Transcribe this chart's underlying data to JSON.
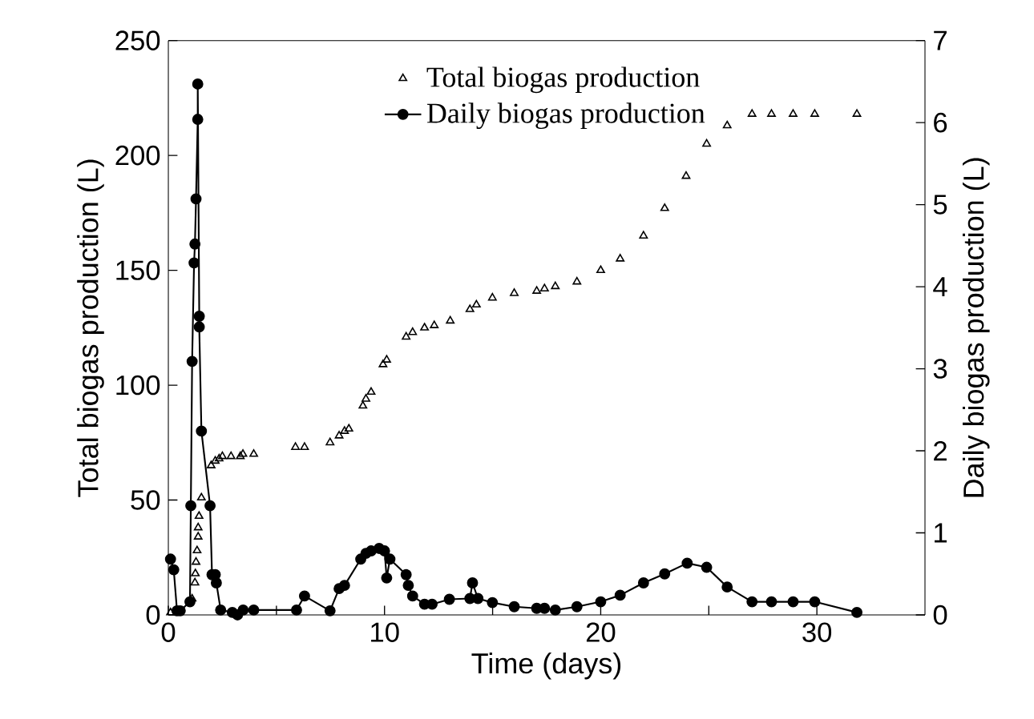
{
  "chart_data": {
    "type": "scatter",
    "xlabel": "Time (days)",
    "ylabel": "Total biogas production (L)",
    "y2label": "Daily biogas production (L)",
    "xlim": [
      0,
      35
    ],
    "xticks": [
      0,
      {
        "value": 5,
        "label": null
      },
      10,
      {
        "value": 15,
        "label": null
      },
      20,
      {
        "value": 25,
        "label": null
      },
      30
    ],
    "ylim": [
      0,
      250
    ],
    "yticks": [
      0,
      50,
      100,
      150,
      200,
      250
    ],
    "y2lim": [
      0,
      7
    ],
    "y2ticks": [
      0,
      1,
      2,
      3,
      4,
      5,
      6,
      7
    ],
    "legend": "top",
    "grid": false,
    "series": [
      {
        "name": "Total biogas production",
        "marker": "triangle",
        "color": "#000000",
        "x": [
          0.1,
          1.1,
          1.23,
          1.25,
          1.28,
          1.33,
          1.38,
          1.38,
          1.42,
          1.53,
          1.98,
          2.17,
          2.35,
          2.5,
          2.9,
          3.33,
          3.45,
          3.95,
          5.88,
          6.3,
          7.48,
          7.9,
          8.15,
          8.35,
          9.0,
          9.14,
          9.38,
          9.93,
          10.1,
          11.0,
          11.3,
          11.85,
          12.3,
          13.04,
          13.95,
          14.25,
          14.99,
          16.0,
          17.04,
          17.4,
          17.9,
          18.9,
          20.0,
          20.9,
          21.98,
          22.96,
          23.95,
          24.9,
          25.85,
          27.0,
          27.9,
          28.9,
          29.9,
          31.85
        ],
        "values": [
          1,
          7,
          14,
          18,
          23,
          28,
          34,
          38,
          43,
          51,
          65,
          67,
          68,
          69,
          69,
          69,
          70,
          70,
          73,
          73,
          75,
          78,
          80,
          81,
          91,
          94,
          97,
          109,
          111,
          121,
          123,
          125,
          126,
          128,
          133,
          135,
          138,
          140,
          141,
          142,
          143,
          145,
          150,
          155,
          165,
          177,
          191,
          205,
          213,
          218,
          218,
          218,
          218,
          218
        ]
      },
      {
        "name": "Daily biogas production",
        "type": "line",
        "axis": "y2",
        "marker": "circle",
        "line_style": "solid",
        "color": "#000000",
        "x": [
          0.1,
          0.25,
          0.4,
          0.55,
          1.0,
          1.04,
          1.1,
          1.19,
          1.23,
          1.28,
          1.36,
          1.36,
          1.43,
          1.43,
          1.53,
          1.93,
          2.02,
          2.17,
          2.22,
          2.42,
          2.96,
          3.2,
          3.46,
          3.95,
          5.93,
          6.3,
          7.48,
          7.9,
          8.15,
          8.9,
          9.14,
          9.38,
          9.75,
          10.0,
          10.1,
          10.25,
          11.0,
          11.1,
          11.3,
          11.85,
          12.2,
          13.0,
          13.95,
          14.07,
          14.32,
          14.99,
          16.0,
          17.04,
          17.4,
          17.9,
          18.9,
          20.0,
          20.9,
          21.98,
          22.96,
          24.0,
          24.9,
          25.85,
          27.0,
          27.9,
          28.9,
          29.9,
          31.85
        ],
        "values": [
          0.68,
          0.55,
          0.05,
          0.05,
          0.16,
          1.33,
          3.09,
          4.29,
          4.52,
          5.07,
          6.04,
          6.47,
          3.64,
          3.51,
          2.24,
          1.33,
          0.49,
          0.49,
          0.39,
          0.06,
          0.03,
          0,
          0.06,
          0.06,
          0.06,
          0.23,
          0.05,
          0.32,
          0.36,
          0.68,
          0.75,
          0.78,
          0.81,
          0.78,
          0.45,
          0.68,
          0.49,
          0.36,
          0.23,
          0.13,
          0.13,
          0.19,
          0.2,
          0.39,
          0.2,
          0.15,
          0.1,
          0.08,
          0.08,
          0.06,
          0.1,
          0.16,
          0.24,
          0.39,
          0.5,
          0.63,
          0.58,
          0.34,
          0.16,
          0.16,
          0.16,
          0.16,
          0.03
        ]
      }
    ]
  }
}
